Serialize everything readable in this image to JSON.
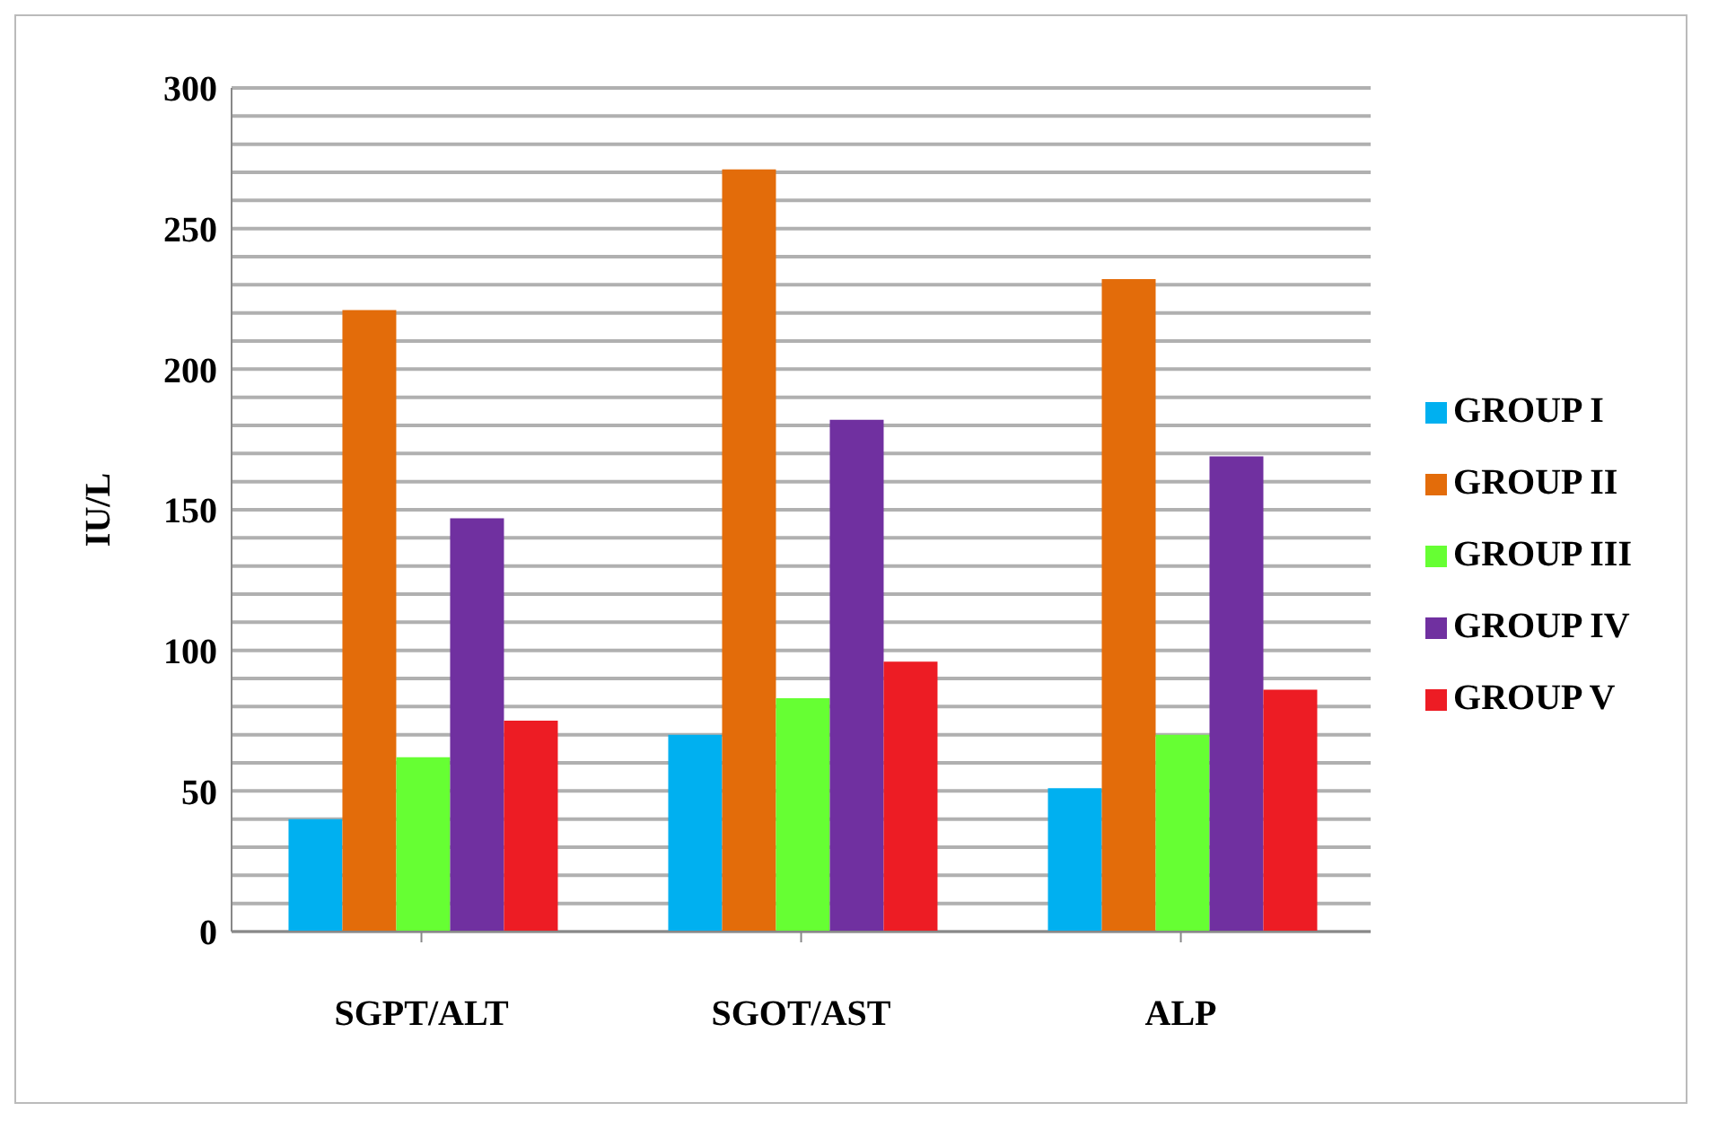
{
  "chart_data": {
    "type": "bar",
    "ylabel": "IU/L",
    "categories": [
      "SGPT/ALT",
      "SGOT/AST",
      "ALP"
    ],
    "series": [
      {
        "name": "GROUP I",
        "color": "#00b0f0",
        "values": [
          40,
          70,
          51
        ]
      },
      {
        "name": "GROUP II",
        "color": "#e36c0a",
        "values": [
          221,
          271,
          232
        ]
      },
      {
        "name": "GROUP III",
        "color": "#66ff33",
        "values": [
          62,
          83,
          70
        ]
      },
      {
        "name": "GROUP IV",
        "color": "#7030a0",
        "values": [
          147,
          182,
          169
        ]
      },
      {
        "name": "GROUP V",
        "color": "#ed1c24",
        "values": [
          75,
          96,
          86
        ]
      }
    ],
    "ylim": [
      0,
      300
    ],
    "yticks": [
      0,
      {
        "value": 10,
        "label": null
      },
      {
        "value": 20,
        "label": null
      },
      {
        "value": 30,
        "label": null
      },
      {
        "value": 40,
        "label": null
      },
      50,
      {
        "value": 60,
        "label": null
      },
      {
        "value": 70,
        "label": null
      },
      {
        "value": 80,
        "label": null
      },
      {
        "value": 90,
        "label": null
      },
      100,
      {
        "value": 110,
        "label": null
      },
      {
        "value": 120,
        "label": null
      },
      {
        "value": 130,
        "label": null
      },
      {
        "value": 140,
        "label": null
      },
      150,
      {
        "value": 160,
        "label": null
      },
      {
        "value": 170,
        "label": null
      },
      {
        "value": 180,
        "label": null
      },
      {
        "value": 190,
        "label": null
      },
      200,
      {
        "value": 210,
        "label": null
      },
      {
        "value": 220,
        "label": null
      },
      {
        "value": 230,
        "label": null
      },
      {
        "value": 240,
        "label": null
      },
      250,
      {
        "value": 260,
        "label": null
      },
      {
        "value": 270,
        "label": null
      },
      {
        "value": 280,
        "label": null
      },
      {
        "value": 290,
        "label": null
      },
      300
    ],
    "grid": "y",
    "legend": "right"
  }
}
